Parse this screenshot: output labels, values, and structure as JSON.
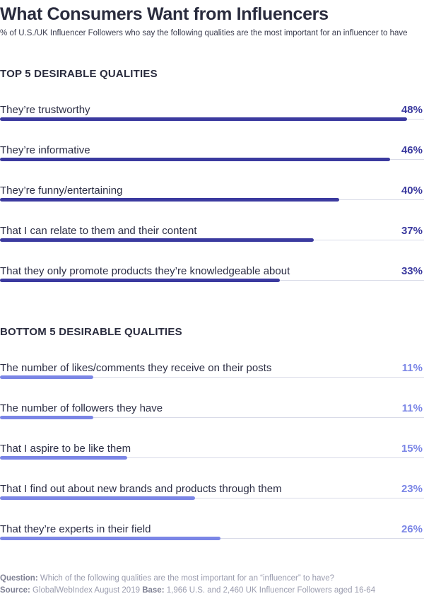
{
  "title": "What Consumers Want from Influencers",
  "subtitle": "% of U.S./UK Influencer Followers who say the following qualities are the most important for an influencer to have",
  "colors": {
    "top_bar": "#3b3a9f",
    "bottom_bar": "#7b86e6",
    "top_value": "#3b3a9f",
    "bottom_value": "#7b86e6",
    "track": "#d9dbe8",
    "label": "#2d2f45"
  },
  "chart_data": [
    {
      "type": "bar",
      "orientation": "horizontal",
      "title": "TOP 5 DESIRABLE QUALITIES",
      "categories": [
        "They’re trustworthy",
        "They’re informative",
        "They’re funny/entertaining",
        "That I can relate to them and their content",
        "That they only promote products they’re knowledgeable about"
      ],
      "values": [
        48,
        46,
        40,
        37,
        33
      ],
      "value_labels": [
        "48%",
        "46%",
        "40%",
        "37%",
        "33%"
      ],
      "unit": "%",
      "xlim": [
        0,
        50
      ]
    },
    {
      "type": "bar",
      "orientation": "horizontal",
      "title": "BOTTOM 5 DESIRABLE QUALITIES",
      "categories": [
        "The number of likes/comments they receive on their posts",
        "The number of followers they have",
        "That I aspire to be like them",
        "That I find out about new brands and products through them",
        "That they’re experts in their field"
      ],
      "values": [
        11,
        11,
        15,
        23,
        26
      ],
      "value_labels": [
        "11%",
        "11%",
        "15%",
        "23%",
        "26%"
      ],
      "unit": "%",
      "xlim": [
        0,
        50
      ]
    }
  ],
  "footer": {
    "question_label": "Question:",
    "question_text": "Which of the following qualities are the most important for an “influencer” to have?",
    "source_label": "Source:",
    "source_text": "GlobalWebIndex August 2019",
    "base_label": "Base:",
    "base_text": "1,966 U.S. and 2,460 UK Influencer Followers aged 16-64"
  }
}
